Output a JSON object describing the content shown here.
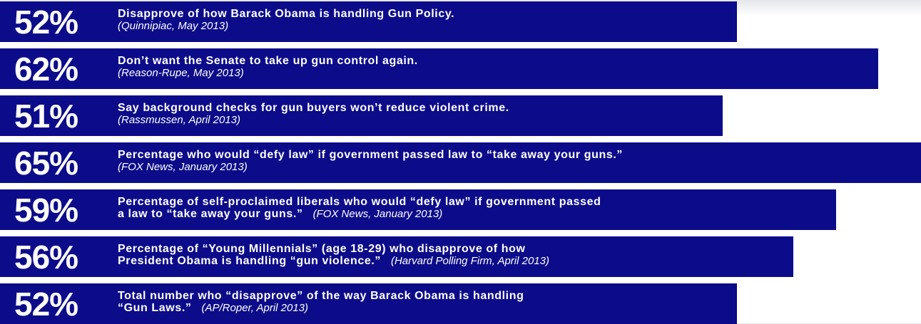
{
  "chart_data": {
    "type": "bar",
    "orientation": "horizontal",
    "color": "#0c0c8a",
    "xlim": [
      0,
      65
    ],
    "values": [
      52,
      62,
      51,
      65,
      59,
      56,
      52
    ],
    "value_labels": [
      "52%",
      "62%",
      "51%",
      "65%",
      "59%",
      "56%",
      "52%"
    ],
    "categories": [
      [
        "Disapprove of how Barack Obama is handling Gun Policy."
      ],
      [
        "Don’t want the Senate to take up gun control again."
      ],
      [
        "Say background checks for gun buyers won’t reduce violent crime."
      ],
      [
        "Percentage who would “defy law” if government passed law to “take away your guns.”"
      ],
      [
        "Percentage of self-proclaimed liberals who would “defy law” if government passed",
        "a law to “take away your guns.”"
      ],
      [
        "Percentage of “Young Millennials” (age 18-29) who disapprove of how",
        "President Obama is handling “gun violence.”"
      ],
      [
        "Total number who “disapprove” of the way Barack Obama is handling",
        "“Gun Laws.”"
      ]
    ],
    "sources": [
      "(Quinnipiac, May 2013)",
      "(Reason-Rupe, May 2013)",
      "(Rassmussen, April 2013)",
      "(FOX News, January 2013)",
      "(FOX News, January 2013)",
      "(Harvard Polling Firm, April 2013)",
      "(AP/Roper, April 2013)"
    ]
  }
}
